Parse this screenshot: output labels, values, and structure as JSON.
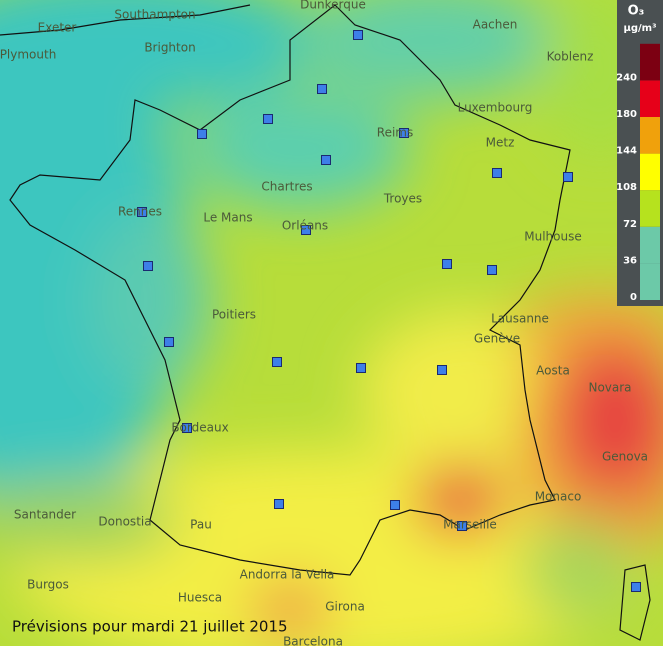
{
  "legend": {
    "title": "O₃",
    "unit": "µg/m³",
    "ticks": [
      0,
      36,
      72,
      108,
      144,
      180,
      240
    ],
    "colors": [
      "#6cc9a8",
      "#6cc9a8",
      "#b6e21e",
      "#ffff00",
      "#f0a10c",
      "#e60019",
      "#7c0012"
    ]
  },
  "caption": "Prévisions pour mardi 21 juillet 2015",
  "places": [
    {
      "label": "Southampton"
    },
    {
      "label": "Exeter"
    },
    {
      "label": "Plymouth"
    },
    {
      "label": "Brighton"
    },
    {
      "label": "Dunkerque"
    },
    {
      "label": "Aachen"
    },
    {
      "label": "Koblenz"
    },
    {
      "label": "Luxembourg"
    },
    {
      "label": "Metz"
    },
    {
      "label": "Reims"
    },
    {
      "label": "Chartres"
    },
    {
      "label": "Rennes"
    },
    {
      "label": "Le Mans"
    },
    {
      "label": "Orléans"
    },
    {
      "label": "Troyes"
    },
    {
      "label": "Mulhouse"
    },
    {
      "label": "Poitiers"
    },
    {
      "label": "Lausanne"
    },
    {
      "label": "Genève"
    },
    {
      "label": "Aosta"
    },
    {
      "label": "Novara"
    },
    {
      "label": "Bordeaux"
    },
    {
      "label": "Genova"
    },
    {
      "label": "Monaco"
    },
    {
      "label": "Marseille"
    },
    {
      "label": "Pau"
    },
    {
      "label": "Santander"
    },
    {
      "label": "Donostia"
    },
    {
      "label": "Burgos"
    },
    {
      "label": "Huesca"
    },
    {
      "label": "Andorra la Vella"
    },
    {
      "label": "Girona"
    },
    {
      "label": "Barcelona"
    },
    {
      "label": "Metz"
    }
  ]
}
